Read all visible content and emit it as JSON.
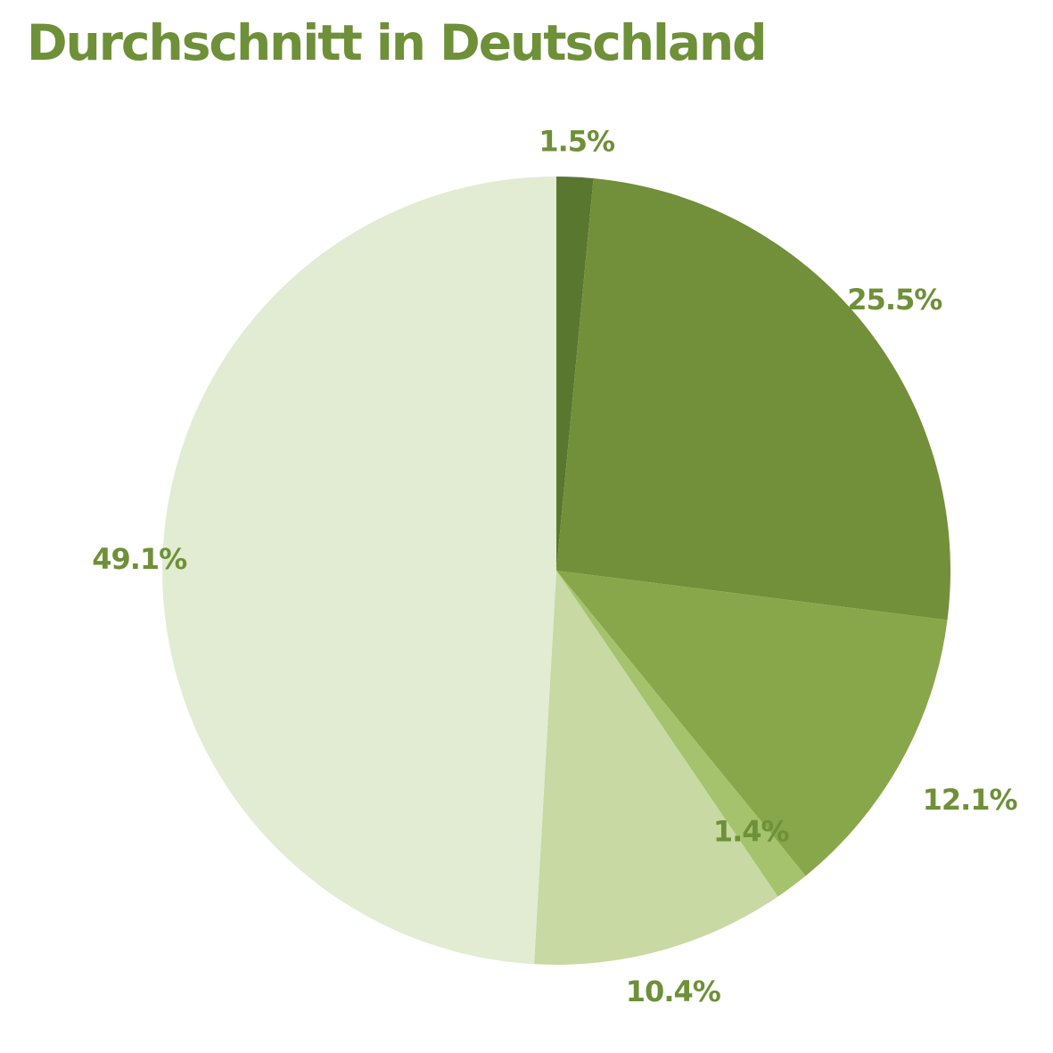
{
  "chart_data": {
    "type": "pie",
    "title": "Durchschnitt in Deutschland",
    "start_angle_deg": 0,
    "direction": "clockwise",
    "values": [
      1.5,
      25.5,
      12.1,
      1.4,
      10.4,
      49.1
    ],
    "data_labels": [
      "1.5%",
      "25.5%",
      "12.1%",
      "1.4%",
      "10.4%",
      "49.1%"
    ],
    "colors": [
      "#5a7730",
      "#728f3a",
      "#88a74a",
      "#a4c36c",
      "#c8d9a3",
      "#e1ecd3"
    ],
    "legend": "none"
  },
  "colors": {
    "title": "#6e9038",
    "labels": "#6e9038",
    "background": "#ffffff"
  }
}
